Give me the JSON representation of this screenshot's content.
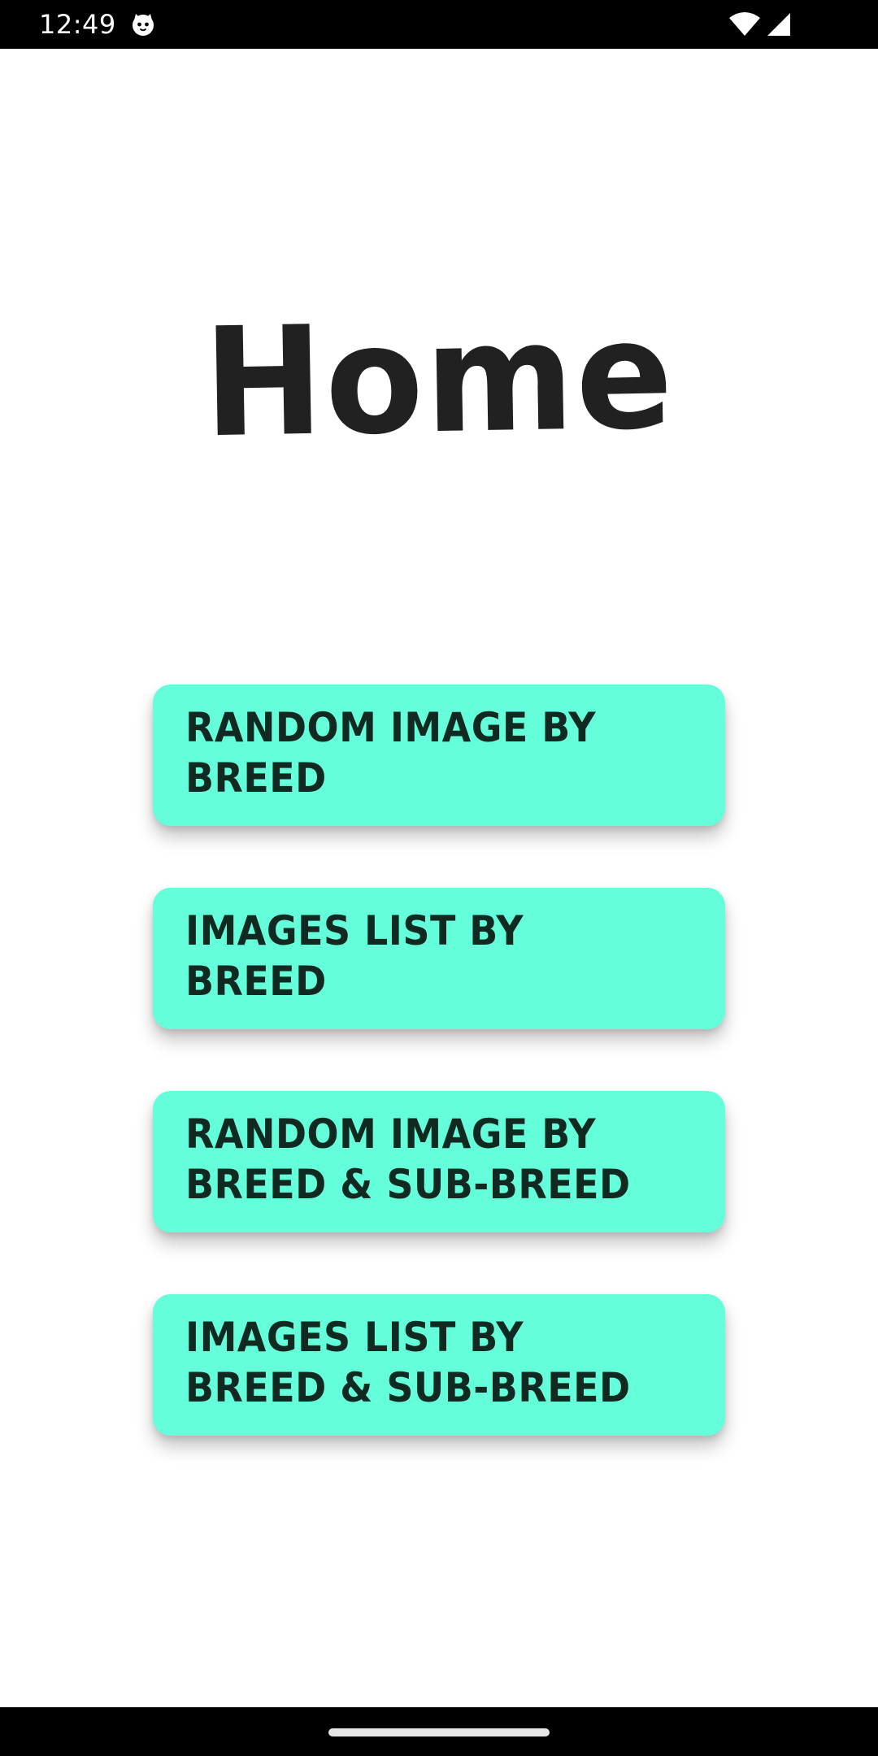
{
  "status_bar": {
    "time": "12:49",
    "app_icon": "cat-face-icon",
    "wifi_icon": "wifi-icon",
    "signal_icon": "cell-signal-icon"
  },
  "page": {
    "title": "Home"
  },
  "buttons": [
    {
      "label": "Random Image By Breed"
    },
    {
      "label": "Images List By Breed"
    },
    {
      "label": "Random Image By Breed & Sub-Breed"
    },
    {
      "label": "Images List By Breed & Sub-Breed"
    }
  ],
  "colors": {
    "button_background": "#64FFDA",
    "title_text": "#212121",
    "button_text": "#102A22",
    "system_bars": "#000000"
  },
  "nav_bar": {
    "home_indicator_icon": "home-gesture-bar-icon"
  }
}
